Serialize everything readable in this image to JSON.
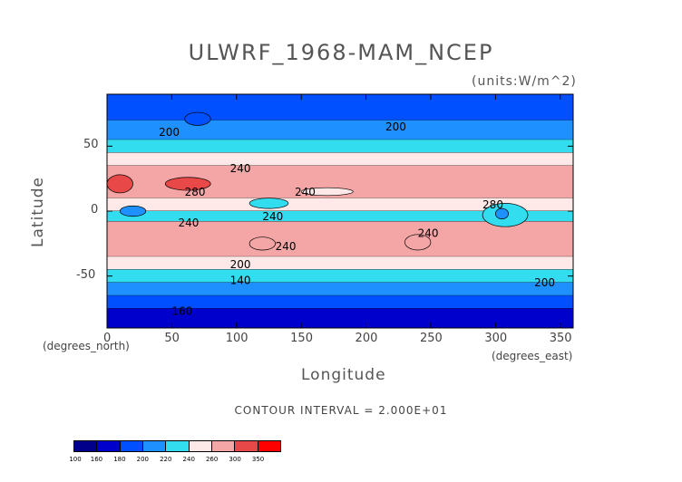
{
  "chart_data": {
    "type": "heatmap",
    "title": "ULWRF_1968-MAM_NCEP",
    "units": "(units:W/m^2)",
    "xlabel": "Longitude",
    "ylabel": "Latitude",
    "x_unit_label": "(degrees_north)",
    "x_unit_label_right": "(degrees_east)",
    "xlim": [
      0,
      360
    ],
    "ylim": [
      -90,
      90
    ],
    "x_ticks": [
      "0",
      "50",
      "100",
      "150",
      "200",
      "250",
      "300",
      "350"
    ],
    "y_ticks": [
      "50",
      "0",
      "-50"
    ],
    "contour_interval_text": "CONTOUR INTERVAL = 2.000E+01",
    "contour_labels": [
      "200",
      "240",
      "280",
      "240",
      "240",
      "240",
      "240",
      "240",
      "200",
      "200",
      "160",
      "140",
      "280",
      "200"
    ],
    "colorbar": {
      "levels": [
        "100",
        "160",
        "180",
        "200",
        "220",
        "240",
        "260",
        "300",
        "350"
      ],
      "colors": [
        "#00008b",
        "#0000cd",
        "#0050ff",
        "#1e90ff",
        "#33ddf0",
        "#ffe8e8",
        "#f4a6a6",
        "#e84848",
        "#ff0000"
      ]
    },
    "zonal_bands": [
      {
        "lat": [
          70,
          90
        ],
        "value": 180
      },
      {
        "lat": [
          55,
          70
        ],
        "value": 200
      },
      {
        "lat": [
          45,
          55
        ],
        "value": 220
      },
      {
        "lat": [
          35,
          45
        ],
        "value": 240
      },
      {
        "lat": [
          10,
          35
        ],
        "value": 270
      },
      {
        "lat": [
          0,
          10
        ],
        "value": 240
      },
      {
        "lat": [
          -8,
          0
        ],
        "value": 220
      },
      {
        "lat": [
          -35,
          -8
        ],
        "value": 260
      },
      {
        "lat": [
          -45,
          -35
        ],
        "value": 240
      },
      {
        "lat": [
          -55,
          -45
        ],
        "value": 220
      },
      {
        "lat": [
          -65,
          -55
        ],
        "value": 200
      },
      {
        "lat": [
          -75,
          -65
        ],
        "value": 180
      },
      {
        "lat": [
          -90,
          -75
        ],
        "value": 160
      }
    ],
    "features": [
      {
        "lon": [
          0,
          20
        ],
        "lat": [
          14,
          28
        ],
        "value": 300
      },
      {
        "lon": [
          45,
          80
        ],
        "lat": [
          16,
          26
        ],
        "value": 300
      },
      {
        "lon": [
          290,
          325
        ],
        "lat": [
          -12,
          6
        ],
        "value": 220
      },
      {
        "lon": [
          300,
          310
        ],
        "lat": [
          -6,
          2
        ],
        "value": 200
      },
      {
        "lon": [
          10,
          30
        ],
        "lat": [
          -4,
          4
        ],
        "value": 200
      },
      {
        "lon": [
          110,
          140
        ],
        "lat": [
          2,
          10
        ],
        "value": 220
      },
      {
        "lon": [
          150,
          190
        ],
        "lat": [
          12,
          18
        ],
        "value": 240
      },
      {
        "lon": [
          230,
          250
        ],
        "lat": [
          -30,
          -18
        ],
        "value": 270
      },
      {
        "lon": [
          110,
          130
        ],
        "lat": [
          -30,
          -20
        ],
        "value": 270
      },
      {
        "lon": [
          60,
          80
        ],
        "lat": [
          66,
          76
        ],
        "value": 180
      }
    ]
  }
}
